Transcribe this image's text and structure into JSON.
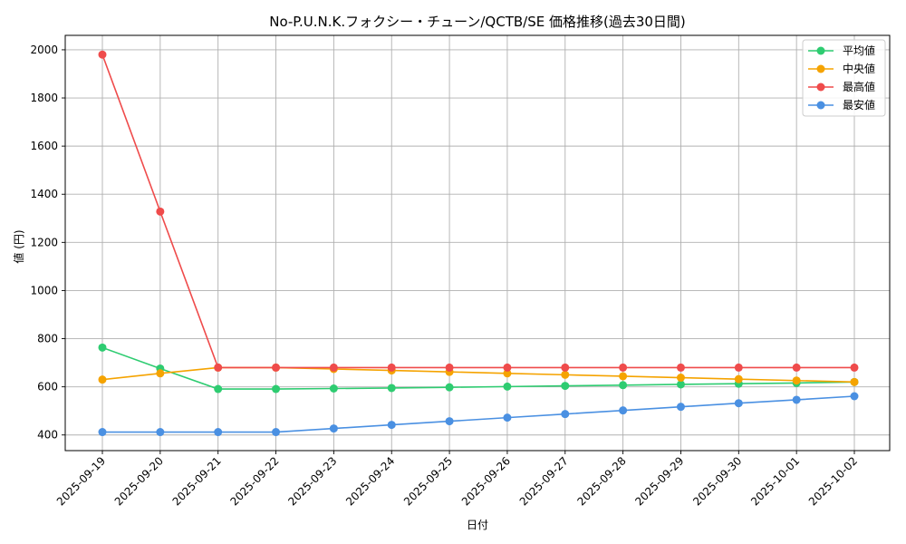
{
  "chart_data": {
    "type": "line",
    "title": "No-P.U.N.K.フォクシー・チューン/QCTB/SE 価格推移(過去30日間)",
    "xlabel": "日付",
    "ylabel": "値 (円)",
    "categories": [
      "2025-09-19",
      "2025-09-20",
      "2025-09-21",
      "2025-09-22",
      "2025-09-23",
      "2025-09-24",
      "2025-09-25",
      "2025-09-26",
      "2025-09-27",
      "2025-09-28",
      "2025-09-29",
      "2025-09-30",
      "2025-10-01",
      "2025-10-02"
    ],
    "ylim": [
      335,
      2060
    ],
    "yticks": [
      400,
      600,
      800,
      1000,
      1200,
      1400,
      1600,
      1800,
      2000
    ],
    "grid": true,
    "legend_position": "top-right",
    "series": [
      {
        "name": "平均値",
        "color": "#2ecc71",
        "values": [
          763,
          676,
          591,
          591,
          593,
          595,
          598,
          601,
          604,
          607,
          610,
          613,
          616,
          620
        ]
      },
      {
        "name": "中央値",
        "color": "#f5a300",
        "values": [
          630,
          656,
          680,
          680,
          674,
          668,
          662,
          656,
          650,
          644,
          638,
          632,
          626,
          620
        ]
      },
      {
        "name": "最高値",
        "color": "#ef4b4b",
        "values": [
          1980,
          1328,
          680,
          680,
          680,
          680,
          680,
          680,
          680,
          680,
          680,
          680,
          680,
          680
        ]
      },
      {
        "name": "最安値",
        "color": "#4a90e2",
        "values": [
          412,
          412,
          412,
          412,
          427,
          442,
          457,
          472,
          487,
          502,
          517,
          532,
          546,
          561
        ]
      }
    ]
  }
}
